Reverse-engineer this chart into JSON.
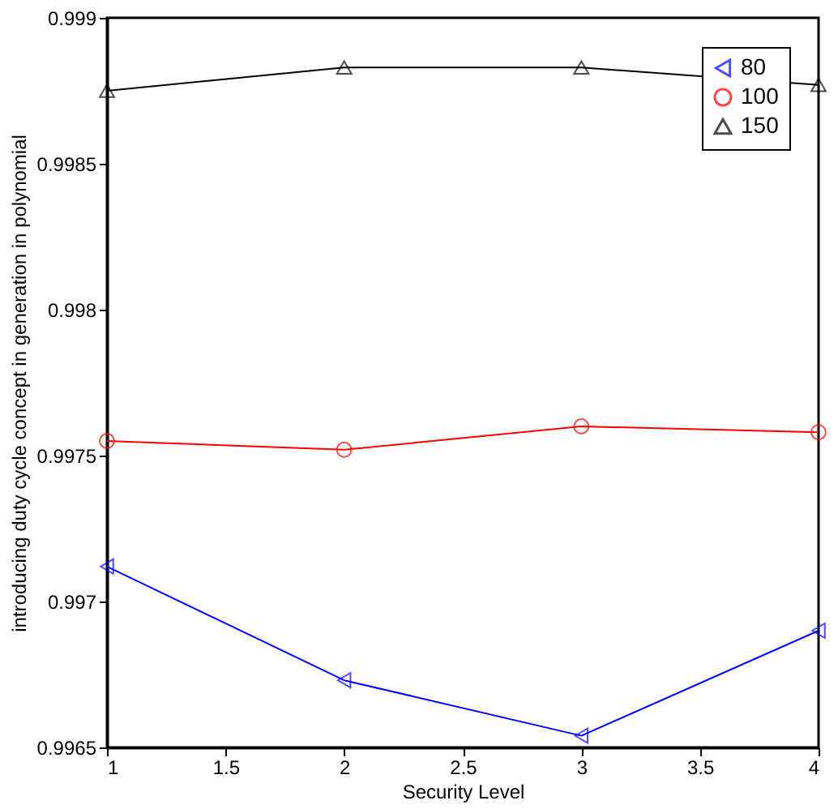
{
  "chart_data": {
    "type": "line",
    "xlabel": "Security Level",
    "ylabel": "introducing duty cycle concept in generation in polynomial",
    "x": [
      1,
      2,
      3,
      4
    ],
    "series": [
      {
        "name": "80",
        "color": "#0000ff",
        "marker": "triangle-left",
        "values": [
          0.99712,
          0.99673,
          0.99654,
          0.9969
        ]
      },
      {
        "name": "100",
        "color": "#ff0000",
        "marker": "circle",
        "values": [
          0.99755,
          0.99752,
          0.9976,
          0.99758
        ]
      },
      {
        "name": "150",
        "color": "#000000",
        "marker": "triangle",
        "values": [
          0.99875,
          0.99883,
          0.99883,
          0.99877
        ]
      }
    ],
    "xlim": [
      1,
      4
    ],
    "xticks": [
      1,
      1.5,
      2,
      2.5,
      3,
      3.5,
      4
    ],
    "ylim": [
      0.9965,
      0.999
    ],
    "yticks": [
      0.9965,
      0.997,
      0.9975,
      0.998,
      0.9985,
      0.999
    ],
    "grid": false,
    "legend": "top right",
    "line_style": "solid"
  }
}
